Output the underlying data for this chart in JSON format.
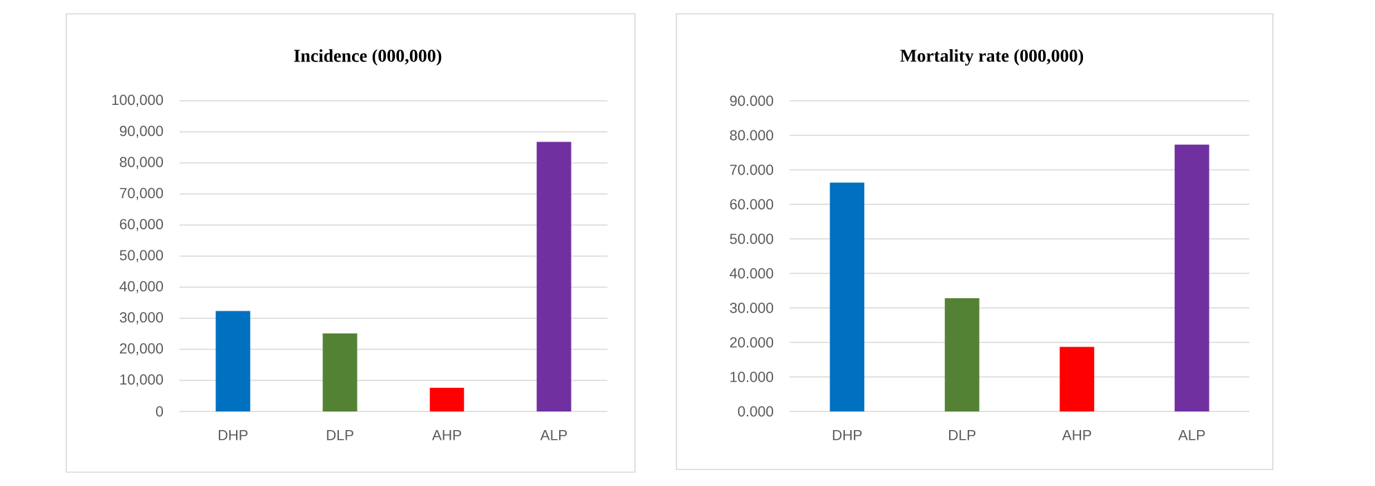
{
  "chart_data": [
    {
      "type": "bar",
      "title": "Incidence (000,000)",
      "categories": [
        "DHP",
        "DLP",
        "AHP",
        "ALP"
      ],
      "values": [
        32300,
        25100,
        7600,
        86800
      ],
      "colors": [
        "#0070c0",
        "#548235",
        "#ff0000",
        "#7030a0"
      ],
      "ylim": [
        0,
        100000
      ],
      "yticks": [
        0,
        {
          "value": 10000,
          "label": "10,000"
        },
        {
          "value": 20000,
          "label": "20,000"
        },
        {
          "value": 30000,
          "label": "30,000"
        },
        {
          "value": 40000,
          "label": "40,000"
        },
        {
          "value": 50000,
          "label": "50,000"
        },
        {
          "value": 60000,
          "label": "60,000"
        },
        {
          "value": 70000,
          "label": "70,000"
        },
        {
          "value": 80000,
          "label": "80,000"
        },
        {
          "value": 90000,
          "label": "90,000"
        },
        {
          "value": 100000,
          "label": "100,000"
        }
      ],
      "grid": "y"
    },
    {
      "type": "bar",
      "title": "Mortality rate (000,000)",
      "categories": [
        "DHP",
        "DLP",
        "AHP",
        "ALP"
      ],
      "values": [
        66.3,
        32.8,
        18.7,
        77.3
      ],
      "colors": [
        "#0070c0",
        "#548235",
        "#ff0000",
        "#7030a0"
      ],
      "ylim": [
        0,
        90
      ],
      "yticks": [
        {
          "value": 0,
          "label": "0.000"
        },
        {
          "value": 10,
          "label": "10.000"
        },
        {
          "value": 20,
          "label": "20.000"
        },
        {
          "value": 30,
          "label": "30.000"
        },
        {
          "value": 40,
          "label": "40.000"
        },
        {
          "value": 50,
          "label": "50.000"
        },
        {
          "value": 60,
          "label": "60.000"
        },
        {
          "value": 70,
          "label": "70.000"
        },
        {
          "value": 80,
          "label": "80.000"
        },
        {
          "value": 90,
          "label": "90.000"
        }
      ],
      "grid": "y"
    }
  ]
}
